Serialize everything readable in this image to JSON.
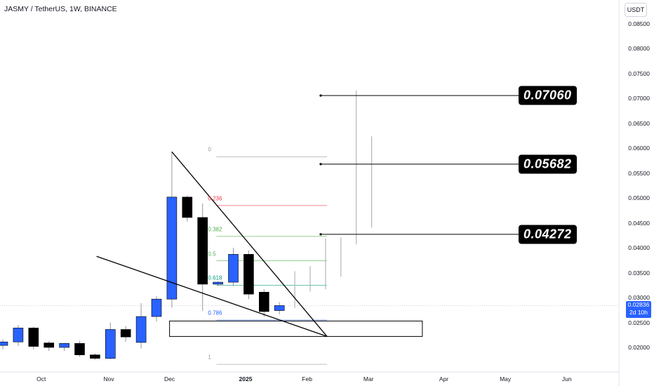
{
  "header": {
    "title": "JASMY / TetherUS, 1W, BINANCE",
    "unit_button": "USDT"
  },
  "price_badge": {
    "price": "0.02836",
    "countdown": "2d 10h",
    "color": "#2962ff"
  },
  "targets": [
    {
      "label": "0.07060",
      "value": 0.0706
    },
    {
      "label": "0.05682",
      "value": 0.05682
    },
    {
      "label": "0.04272",
      "value": 0.04272
    }
  ],
  "fib_levels": [
    {
      "label": "0",
      "value": 0.0583,
      "color": "#9598a1"
    },
    {
      "label": "0.236",
      "value": 0.0485,
      "color": "#f23645"
    },
    {
      "label": "0.382",
      "value": 0.0423,
      "color": "#4caf50"
    },
    {
      "label": "0.5",
      "value": 0.0374,
      "color": "#4caf50"
    },
    {
      "label": "0.618",
      "value": 0.0325,
      "color": "#089981"
    },
    {
      "label": "0.786",
      "value": 0.0255,
      "color": "#2962ff"
    },
    {
      "label": "1",
      "value": 0.0166,
      "color": "#9598a1"
    }
  ],
  "colors": {
    "up": "#2962ff",
    "down": "#000000",
    "wick": "#9598a1",
    "projection": "#b2b5be"
  },
  "chart_data": {
    "type": "candlestick",
    "title": "JASMY / TetherUS, 1W, BINANCE",
    "ylim": [
      0.0155,
      0.0865
    ],
    "yticks": [
      {
        "label": "0.08500",
        "value": 0.085
      },
      {
        "label": "0.08000",
        "value": 0.08
      },
      {
        "label": "0.07500",
        "value": 0.075
      },
      {
        "label": "0.07000",
        "value": 0.07
      },
      {
        "label": "0.06500",
        "value": 0.065
      },
      {
        "label": "0.06000",
        "value": 0.06
      },
      {
        "label": "0.05500",
        "value": 0.055
      },
      {
        "label": "0.05000",
        "value": 0.05
      },
      {
        "label": "0.04500",
        "value": 0.045
      },
      {
        "label": "0.04000",
        "value": 0.04
      },
      {
        "label": "0.03500",
        "value": 0.035
      },
      {
        "label": "0.03000",
        "value": 0.03
      },
      {
        "label": "0.02500",
        "value": 0.025
      },
      {
        "label": "0.02000",
        "value": 0.02
      }
    ],
    "xticks": [
      {
        "label": "Oct",
        "index": 2.5,
        "bold": false
      },
      {
        "label": "Nov",
        "index": 6.9,
        "bold": false
      },
      {
        "label": "Dec",
        "index": 10.85,
        "bold": false
      },
      {
        "label": "2025",
        "index": 15.8,
        "bold": true
      },
      {
        "label": "Feb",
        "index": 19.8,
        "bold": false
      },
      {
        "label": "Mar",
        "index": 23.8,
        "bold": false
      },
      {
        "label": "Apr",
        "index": 28.7,
        "bold": false
      },
      {
        "label": "May",
        "index": 32.7,
        "bold": false
      },
      {
        "label": "Jun",
        "index": 36.7,
        "bold": false
      }
    ],
    "candles": [
      {
        "o": 0.0204,
        "h": 0.0216,
        "l": 0.0196,
        "c": 0.0211
      },
      {
        "o": 0.0211,
        "h": 0.0245,
        "l": 0.0203,
        "c": 0.0239
      },
      {
        "o": 0.0239,
        "h": 0.0242,
        "l": 0.0196,
        "c": 0.0202
      },
      {
        "o": 0.0209,
        "h": 0.0213,
        "l": 0.0193,
        "c": 0.02
      },
      {
        "o": 0.02,
        "h": 0.0209,
        "l": 0.0193,
        "c": 0.0208
      },
      {
        "o": 0.0208,
        "h": 0.0213,
        "l": 0.0181,
        "c": 0.0185
      },
      {
        "o": 0.0185,
        "h": 0.0188,
        "l": 0.0175,
        "c": 0.0178
      },
      {
        "o": 0.0178,
        "h": 0.025,
        "l": 0.0176,
        "c": 0.0236
      },
      {
        "o": 0.0236,
        "h": 0.0243,
        "l": 0.0211,
        "c": 0.0221
      },
      {
        "o": 0.021,
        "h": 0.0289,
        "l": 0.0198,
        "c": 0.0262
      },
      {
        "o": 0.0262,
        "h": 0.0303,
        "l": 0.0252,
        "c": 0.0297
      },
      {
        "o": 0.0297,
        "h": 0.0593,
        "l": 0.028,
        "c": 0.0502
      },
      {
        "o": 0.0502,
        "h": 0.0505,
        "l": 0.0453,
        "c": 0.0461
      },
      {
        "o": 0.0461,
        "h": 0.0489,
        "l": 0.0273,
        "c": 0.0327
      },
      {
        "o": 0.0327,
        "h": 0.0333,
        "l": 0.0323,
        "c": 0.0331
      },
      {
        "o": 0.0331,
        "h": 0.04,
        "l": 0.0323,
        "c": 0.0387
      },
      {
        "o": 0.0387,
        "h": 0.0395,
        "l": 0.0297,
        "c": 0.0307
      },
      {
        "o": 0.0311,
        "h": 0.0317,
        "l": 0.0262,
        "c": 0.0272
      },
      {
        "o": 0.0274,
        "h": 0.0291,
        "l": 0.0266,
        "c": 0.0284
      }
    ],
    "projection_bars": [
      {
        "index": 19,
        "h": 0.0353,
        "l": 0.0279
      },
      {
        "index": 20,
        "h": 0.0363,
        "l": 0.0312
      },
      {
        "index": 21,
        "h": 0.0419,
        "l": 0.0317
      },
      {
        "index": 22,
        "h": 0.0421,
        "l": 0.0342
      },
      {
        "index": 23,
        "h": 0.0716,
        "l": 0.0407
      },
      {
        "index": 24,
        "h": 0.0624,
        "l": 0.0441
      }
    ],
    "current_price": 0.02836,
    "support_zone": {
      "x_start": 10.85,
      "x_end": 27.3,
      "low": 0.0222,
      "high": 0.0253
    },
    "trendlines": [
      {
        "from": [
          11.0,
          0.0593
        ],
        "to": [
          21.1,
          0.0222
        ]
      },
      {
        "from": [
          6.1,
          0.0383
        ],
        "to": [
          21.1,
          0.0222
        ]
      }
    ],
    "fib_range": {
      "x_start": 13.9,
      "x_end": 21.1
    }
  }
}
